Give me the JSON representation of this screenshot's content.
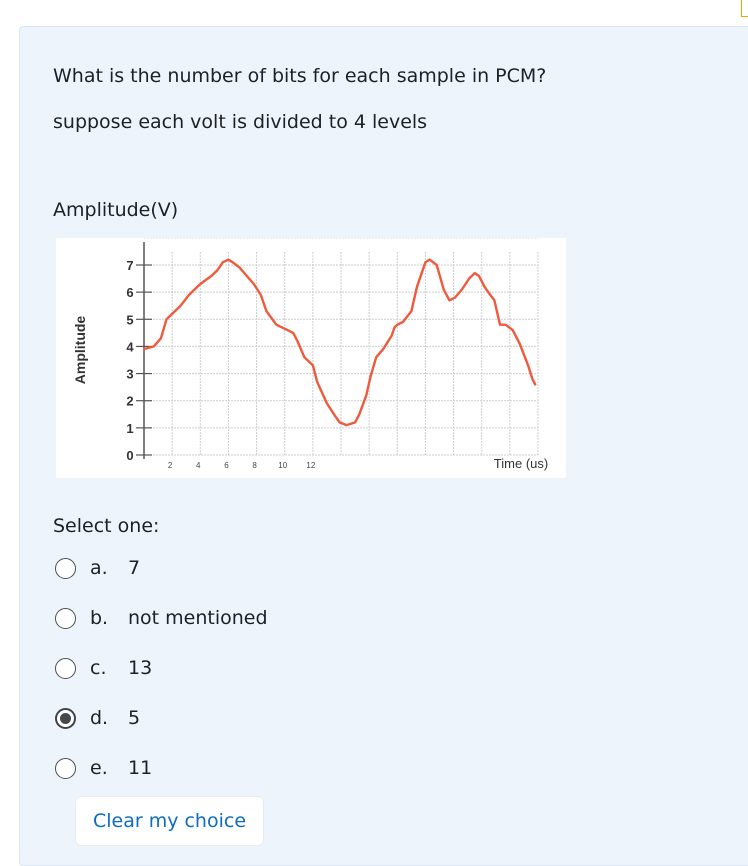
{
  "question": {
    "line1": "What is the number of bits for each sample in PCM?",
    "line2": "suppose each volt is divided to 4 levels",
    "caption": "Amplitude(V)"
  },
  "chart_data": {
    "type": "line",
    "ylabel": "Amplitude",
    "xlabel": "Time (us)",
    "y_ticks": [
      "0",
      "1",
      "2",
      "3",
      "4",
      "5",
      "6",
      "7"
    ],
    "x_ticks": [
      "2",
      "4",
      "6",
      "8",
      "10",
      "12"
    ],
    "ylim": [
      0,
      7.5
    ],
    "xlim": [
      0,
      28
    ],
    "grid": true,
    "line_color": "#f05a3c",
    "series": [
      {
        "x": [
          0.0,
          0.7,
          1.2,
          1.6,
          2.6,
          3.2,
          4.0,
          4.8,
          5.2,
          5.6,
          6.0,
          6.3,
          6.8,
          7.3,
          7.8,
          8.3,
          8.7,
          9.4,
          10.2,
          10.6,
          10.9,
          11.4,
          12.0,
          12.3,
          13.0,
          13.5,
          13.9,
          14.4,
          15.0,
          15.3,
          15.8,
          16.1,
          16.5,
          17.0,
          17.6,
          17.8,
          18.0,
          18.4,
          19.0,
          19.4,
          20.0,
          20.3,
          20.8,
          21.3,
          21.7,
          22.1,
          22.6,
          23.1,
          23.5,
          23.8,
          24.2,
          24.6,
          24.9,
          25.3,
          25.7,
          26.2,
          26.7,
          27.0,
          27.3,
          27.6,
          27.8
        ],
        "values": [
          3.9,
          4.0,
          4.3,
          5.0,
          5.5,
          5.9,
          6.3,
          6.6,
          6.8,
          7.1,
          7.2,
          7.1,
          6.9,
          6.6,
          6.3,
          5.9,
          5.3,
          4.8,
          4.6,
          4.5,
          4.2,
          3.6,
          3.3,
          2.7,
          1.9,
          1.5,
          1.2,
          1.1,
          1.2,
          1.5,
          2.2,
          2.9,
          3.6,
          3.9,
          4.4,
          4.7,
          4.8,
          4.9,
          5.3,
          6.2,
          7.1,
          7.2,
          7.0,
          6.1,
          5.7,
          5.8,
          6.1,
          6.5,
          6.7,
          6.6,
          6.2,
          5.9,
          5.7,
          4.8,
          4.8,
          4.6,
          4.1,
          3.7,
          3.3,
          2.8,
          2.6
        ]
      }
    ]
  },
  "select_label": "Select one:",
  "answers": [
    {
      "letter": "a.",
      "text": "7",
      "checked": false
    },
    {
      "letter": "b.",
      "text": "not mentioned",
      "checked": false
    },
    {
      "letter": "c.",
      "text": "13",
      "checked": false
    },
    {
      "letter": "d.",
      "text": "5",
      "checked": true
    },
    {
      "letter": "e.",
      "text": "11",
      "checked": false
    }
  ],
  "clear_label": "Clear my choice"
}
